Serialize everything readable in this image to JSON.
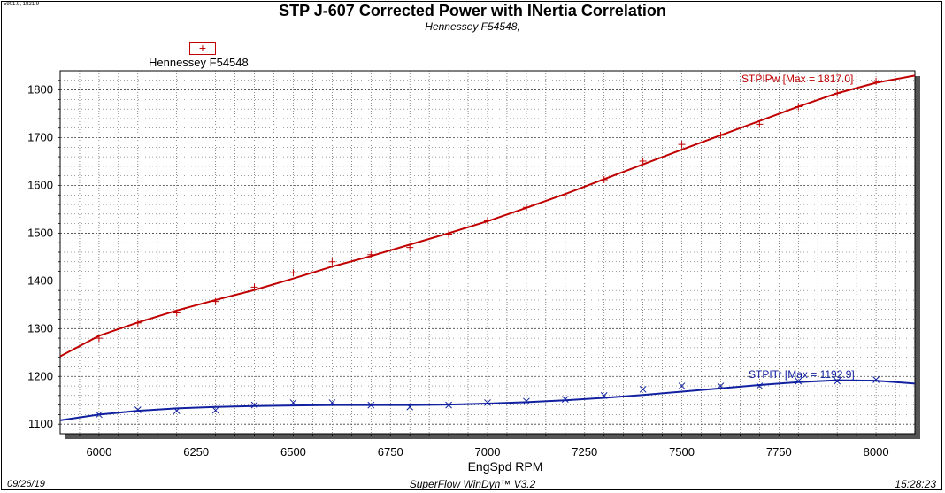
{
  "header": {
    "coord_readout": "5901.9, 1821.9",
    "title": "STP J-607 Corrected Power with INertia Correlation",
    "subtitle": "Hennessey F54548,"
  },
  "legend": {
    "label": "Hennessey F54548",
    "marker": "+"
  },
  "footer": {
    "date": "09/26/19",
    "software": "SuperFlow WinDyn™ V3.2",
    "time": "15:28:23"
  },
  "colors": {
    "power": "#c00000",
    "torque": "#1020a0",
    "grid": "#404040"
  },
  "chart_data": {
    "type": "line",
    "xlabel": "EngSpd RPM",
    "ylabel": "",
    "xlim": [
      5900,
      8100
    ],
    "ylim": [
      1080,
      1840
    ],
    "x_ticks": [
      6000,
      6250,
      6500,
      6750,
      7000,
      7250,
      7500,
      7750,
      8000
    ],
    "y_ticks": [
      1100,
      1200,
      1300,
      1400,
      1500,
      1600,
      1700,
      1800
    ],
    "grid": true,
    "series": [
      {
        "name": "STPIPw",
        "annotation": "STPIPw [Max = 1817.0]",
        "color": "#c00000",
        "curve_x": [
          5900,
          6000,
          6100,
          6200,
          6300,
          6400,
          6500,
          6600,
          6700,
          6800,
          6900,
          7000,
          7100,
          7200,
          7300,
          7400,
          7500,
          7600,
          7700,
          7800,
          7900,
          8000,
          8100
        ],
        "curve_y": [
          1242,
          1285,
          1313,
          1338,
          1360,
          1381,
          1405,
          1430,
          1452,
          1476,
          1500,
          1525,
          1553,
          1582,
          1613,
          1644,
          1675,
          1705,
          1735,
          1765,
          1793,
          1815,
          1830
        ],
        "points_x": [
          6000,
          6100,
          6200,
          6300,
          6400,
          6500,
          6600,
          6700,
          6800,
          6900,
          7000,
          7100,
          7200,
          7300,
          7400,
          7500,
          7600,
          7700,
          7800,
          7900,
          8000
        ],
        "points_y": [
          1280,
          1312,
          1333,
          1357,
          1387,
          1417,
          1440,
          1455,
          1470,
          1498,
          1526,
          1554,
          1578,
          1612,
          1651,
          1686,
          1705,
          1728,
          1765,
          1793,
          1818
        ]
      },
      {
        "name": "STPITr",
        "annotation": "STPITr [Max = 1192.9]",
        "color": "#1020a0",
        "curve_x": [
          5900,
          6000,
          6100,
          6200,
          6300,
          6400,
          6500,
          6600,
          6700,
          6800,
          6900,
          7000,
          7100,
          7200,
          7300,
          7400,
          7500,
          7600,
          7700,
          7800,
          7900,
          8000,
          8100
        ],
        "curve_y": [
          1108,
          1120,
          1128,
          1133,
          1136,
          1138,
          1139,
          1140,
          1140,
          1140,
          1141,
          1143,
          1146,
          1150,
          1155,
          1161,
          1168,
          1175,
          1182,
          1188,
          1192,
          1191,
          1185
        ],
        "points_x": [
          6000,
          6100,
          6200,
          6300,
          6400,
          6500,
          6600,
          6700,
          6800,
          6900,
          7000,
          7100,
          7200,
          7300,
          7400,
          7500,
          7600,
          7700,
          7800,
          7900,
          8000
        ],
        "points_y": [
          1120,
          1130,
          1128,
          1129,
          1140,
          1145,
          1145,
          1140,
          1136,
          1140,
          1145,
          1148,
          1152,
          1160,
          1173,
          1180,
          1180,
          1180,
          1190,
          1190,
          1193
        ]
      }
    ]
  }
}
